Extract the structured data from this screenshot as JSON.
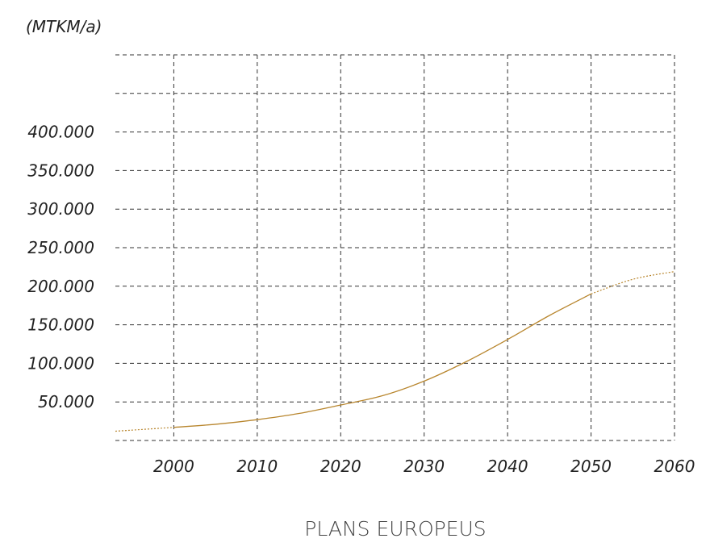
{
  "chart_data": {
    "type": "line",
    "title": "PLANS EUROPEUS",
    "ylabel": "(MTKM/a)",
    "xlabel": "",
    "x_ticks": [
      "2000",
      "2010",
      "2020",
      "2030",
      "2040",
      "2050",
      "2060"
    ],
    "y_ticks": [
      "50.000",
      "100.000",
      "150.000",
      "200.000",
      "250.000",
      "300.000",
      "350.000",
      "400.000"
    ],
    "xlim": [
      1993,
      2060
    ],
    "ylim": [
      0,
      500000
    ],
    "grid": true,
    "line_color": "#b8862e",
    "series": [
      {
        "solid_range": [
          2000,
          2050
        ],
        "x": [
          1993,
          2000,
          2005,
          2010,
          2015,
          2020,
          2025,
          2030,
          2035,
          2040,
          2045,
          2050,
          2055,
          2060
        ],
        "y": [
          12000,
          17000,
          21000,
          27000,
          35000,
          46000,
          58000,
          77000,
          102000,
          131000,
          162000,
          190000,
          209000,
          219000
        ]
      }
    ]
  }
}
